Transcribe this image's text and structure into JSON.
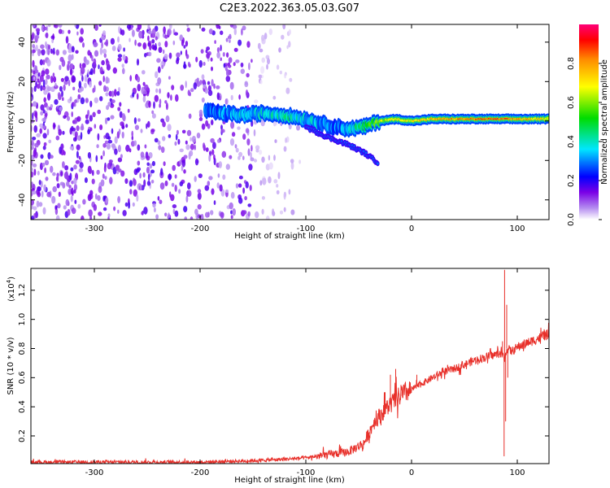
{
  "figure": {
    "title": "C2E3.2022.363.05.03.G07"
  },
  "chart_data": [
    {
      "type": "heatmap",
      "xlabel": "Height of straight line (km)",
      "ylabel": "Frequency (Hz)",
      "xlim": [
        -360,
        130
      ],
      "ylim": [
        -50,
        49
      ],
      "xticks": [
        "-300",
        "-200",
        "-100",
        "0",
        "100"
      ],
      "yticks": [
        "40",
        "20",
        "0",
        "-20",
        "-40"
      ],
      "colorbar": {
        "label": "Normalized spectral amplitude",
        "range": [
          0,
          1
        ],
        "ticks": [
          "0.0",
          "0.2",
          "0.4",
          "0.6",
          "0.8"
        ]
      },
      "features": {
        "noise_region_km": [
          -360,
          -150
        ],
        "signal_track": {
          "x": [
            -195,
            -180,
            -160,
            -140,
            -120,
            -100,
            -80,
            -60,
            -45,
            -30,
            -15,
            0,
            20,
            40,
            60,
            80,
            100,
            130
          ],
          "y": [
            5,
            4,
            3,
            4,
            3,
            1,
            -2,
            -4,
            -3,
            0,
            1,
            0,
            1,
            1,
            1,
            1,
            1,
            1
          ],
          "amplitude": [
            0.3,
            0.3,
            0.35,
            0.35,
            0.4,
            0.35,
            0.3,
            0.3,
            0.5,
            0.6,
            0.7,
            0.7,
            0.75,
            0.8,
            0.85,
            0.9,
            0.8,
            0.7
          ]
        },
        "descending_branch": {
          "x": [
            -100,
            -80,
            -60,
            -45,
            -32
          ],
          "y": [
            -3,
            -8,
            -12,
            -16,
            -21
          ]
        }
      }
    },
    {
      "type": "line",
      "xlabel": "Height of straight line (km)",
      "ylabel": "SNR (10 * v/v)",
      "scale_label": "(x10",
      "scale_exp": "4",
      "ylabel_unit": ")",
      "xlim": [
        -360,
        130
      ],
      "ylim": [
        0.01,
        1.35
      ],
      "xticks": [
        "-300",
        "-200",
        "-100",
        "0",
        "100"
      ],
      "yticks": [
        "0.2",
        "0.4",
        "0.6",
        "0.8",
        "1.0",
        "1.2"
      ],
      "color": "#e8302a",
      "series": [
        {
          "x": [
            -360,
            -300,
            -250,
            -200,
            -150,
            -120,
            -100,
            -80,
            -60,
            -45,
            -35,
            -25,
            -15,
            -5,
            0,
            10,
            20,
            30,
            40,
            50,
            60,
            70,
            80,
            85,
            88,
            90,
            95,
            100,
            110,
            120,
            130
          ],
          "y": [
            0.02,
            0.02,
            0.02,
            0.02,
            0.03,
            0.04,
            0.05,
            0.07,
            0.09,
            0.15,
            0.3,
            0.38,
            0.45,
            0.5,
            0.52,
            0.56,
            0.6,
            0.64,
            0.66,
            0.69,
            0.72,
            0.74,
            0.76,
            0.77,
            0.72,
            0.8,
            0.78,
            0.81,
            0.84,
            0.87,
            0.9
          ]
        }
      ],
      "spikes": {
        "x": [
          -40,
          -30,
          -25,
          -20,
          -15,
          -10,
          -5,
          5,
          86,
          87.5,
          88,
          89,
          90,
          91
        ],
        "y": [
          0.22,
          0.35,
          0.5,
          0.62,
          0.66,
          0.55,
          0.52,
          0.62,
          0.85,
          0.06,
          1.34,
          0.3,
          1.1,
          0.6
        ]
      }
    }
  ]
}
